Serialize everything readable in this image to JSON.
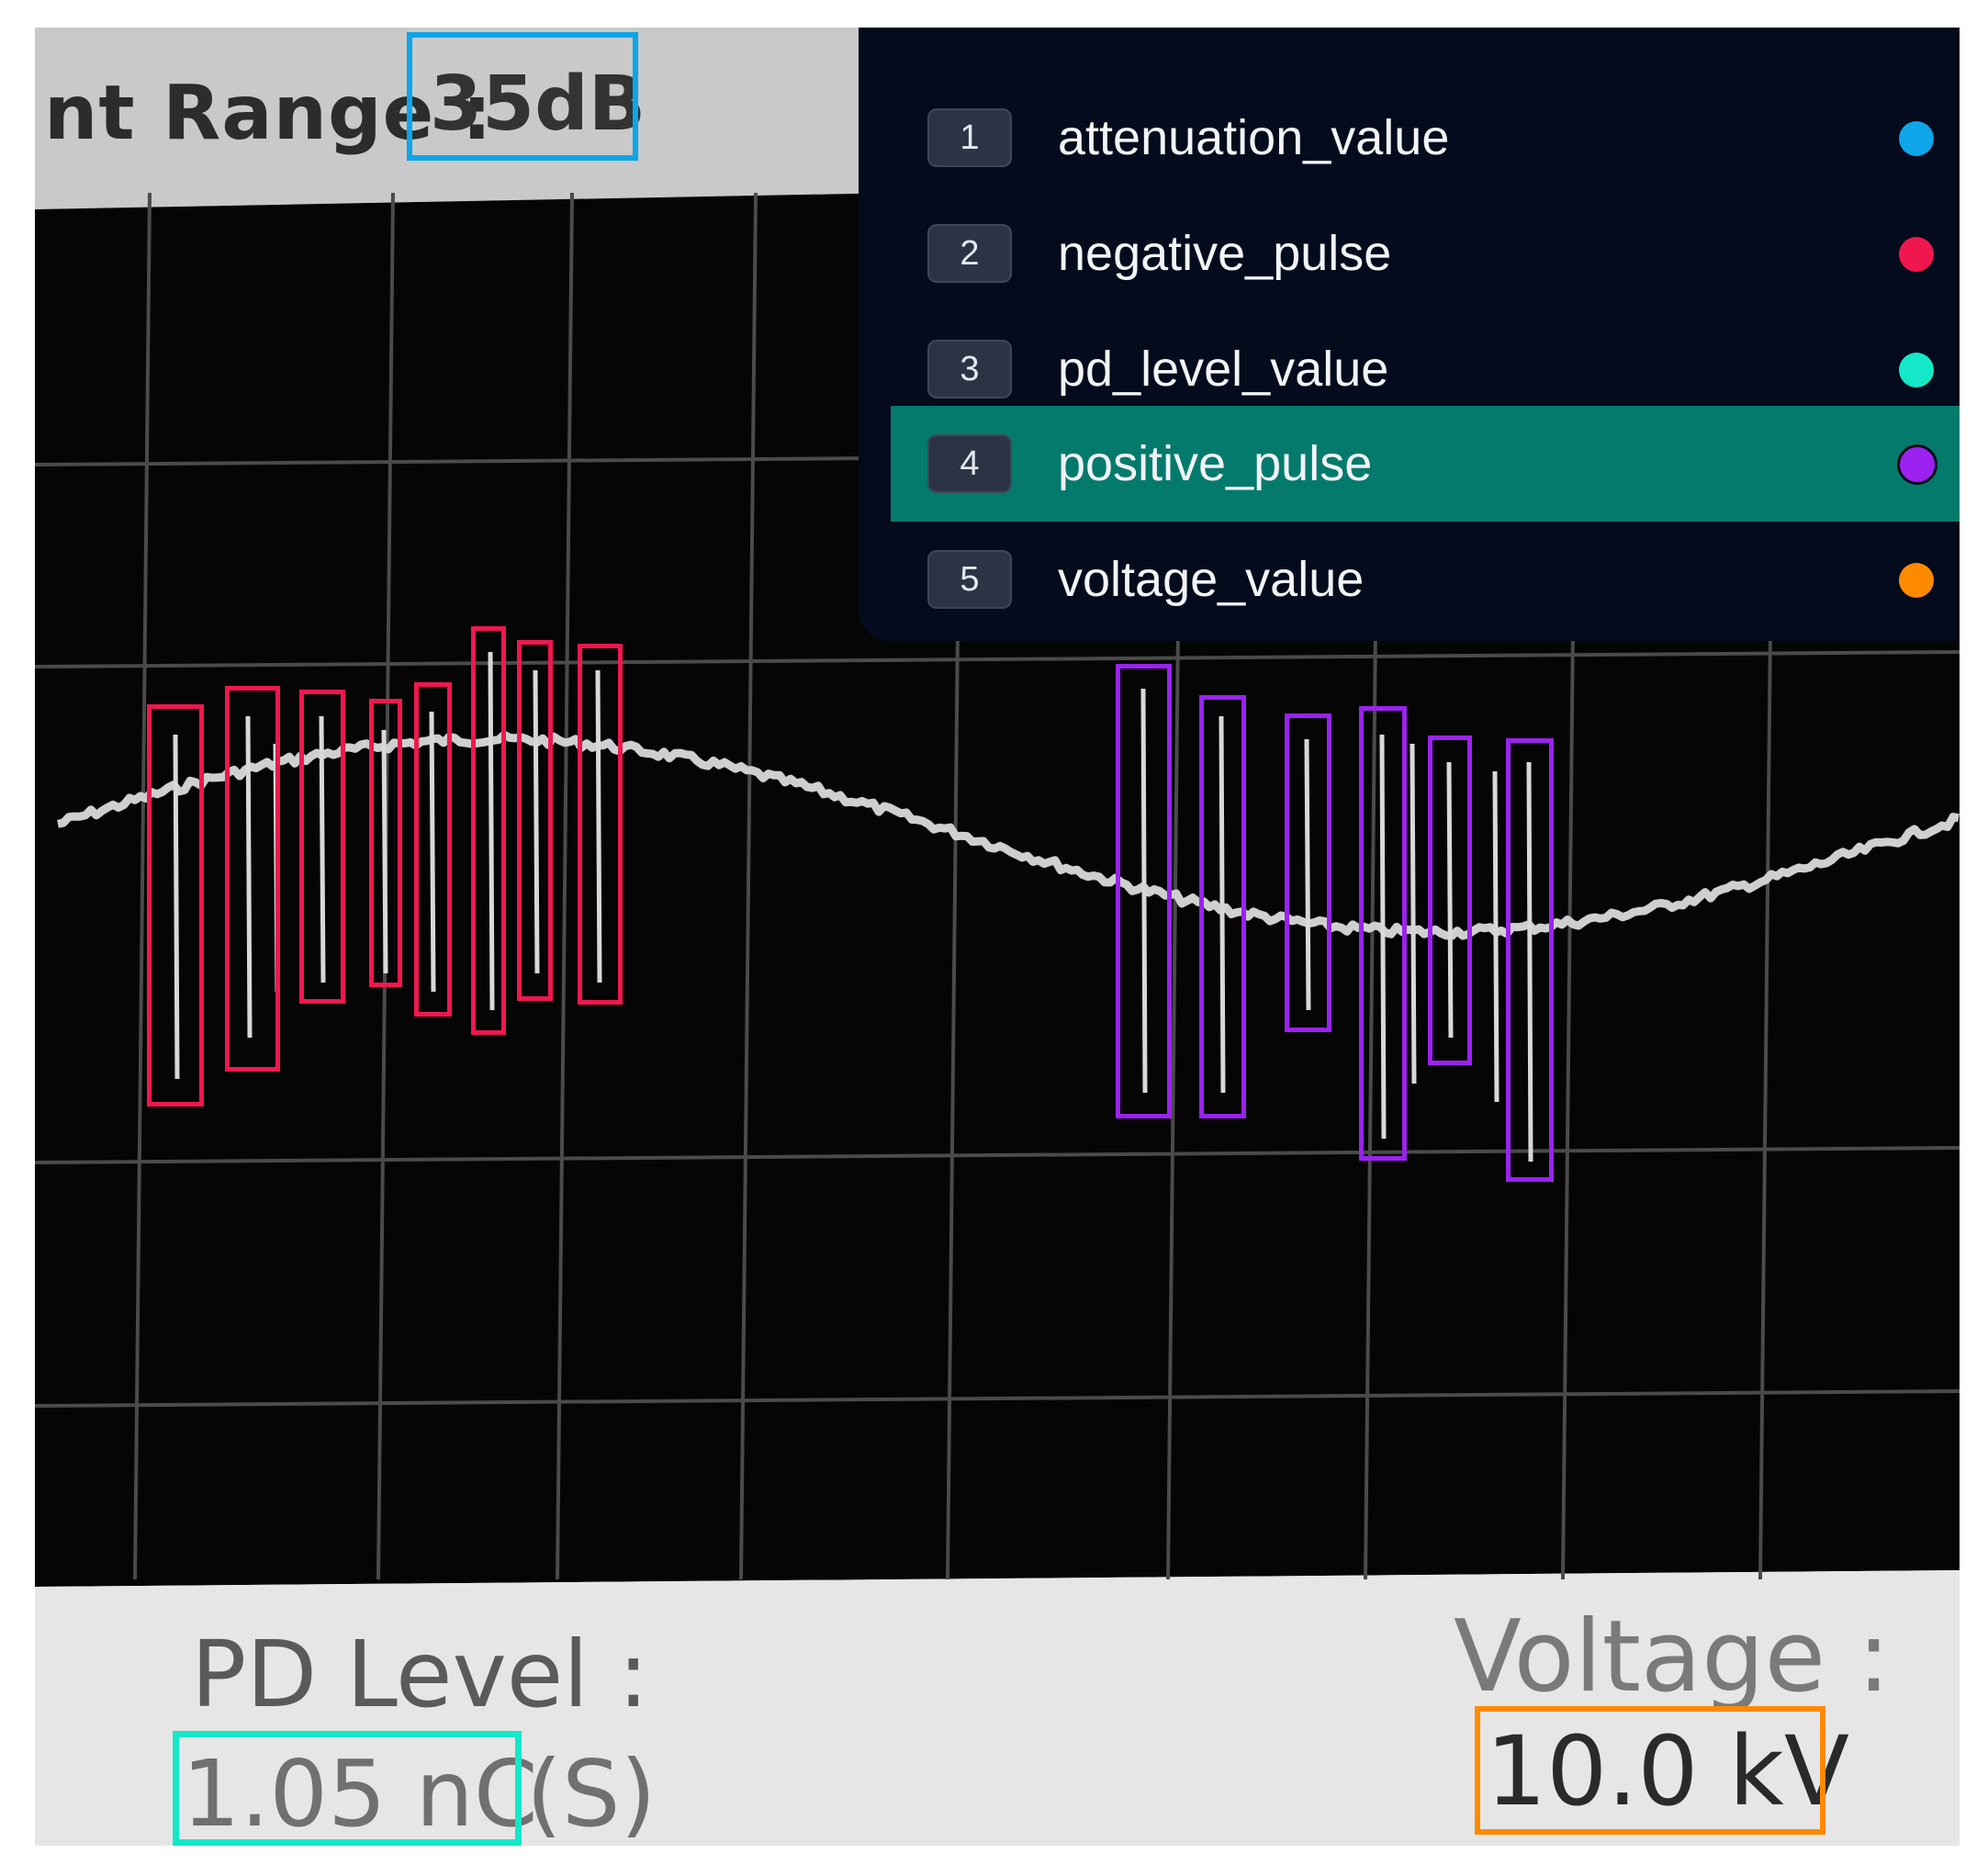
{
  "screen": {
    "range_label": "nt Range :",
    "range_value": "35dB",
    "pd_label": "PD Level :",
    "pd_value": "1.05 nC",
    "pd_suffix": "(S)",
    "voltage_label": "Voltage :",
    "voltage_value": "10.0 kV"
  },
  "legend": {
    "selected_index": 4,
    "items": [
      {
        "index": "1",
        "label": "attenuation_value",
        "color": "#0ea5e9",
        "color_name": "sky-blue"
      },
      {
        "index": "2",
        "label": "negative_pulse",
        "color": "#f0174f",
        "color_name": "crimson"
      },
      {
        "index": "3",
        "label": "pd_level_value",
        "color": "#14e8c8",
        "color_name": "aqua"
      },
      {
        "index": "4",
        "label": "positive_pulse",
        "color": "#9b22f0",
        "color_name": "violet"
      },
      {
        "index": "5",
        "label": "voltage_value",
        "color": "#ff8a00",
        "color_name": "orange"
      }
    ]
  },
  "annotations": {
    "attenuation_value_count": 1,
    "negative_pulse_count": 8,
    "pd_level_value_count": 1,
    "positive_pulse_count": 6,
    "voltage_value_count": 1
  }
}
